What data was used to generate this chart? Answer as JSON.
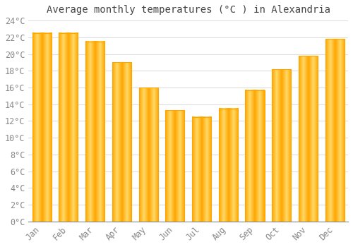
{
  "title": "Average monthly temperatures (°C ) in Alexandria",
  "months": [
    "Jan",
    "Feb",
    "Mar",
    "Apr",
    "May",
    "Jun",
    "Jul",
    "Aug",
    "Sep",
    "Oct",
    "Nov",
    "Dec"
  ],
  "values": [
    22.5,
    22.5,
    21.5,
    19.0,
    16.0,
    13.3,
    12.5,
    13.5,
    15.7,
    18.2,
    19.8,
    21.8
  ],
  "bar_color_center": "#FFD966",
  "bar_color_edge": "#FFA500",
  "ylim": [
    0,
    24
  ],
  "ytick_step": 2,
  "background_color": "#FFFFFF",
  "plot_bg_color": "#FFFFFF",
  "grid_color": "#dddddd",
  "title_fontsize": 10,
  "tick_fontsize": 8.5,
  "tick_color": "#888888"
}
